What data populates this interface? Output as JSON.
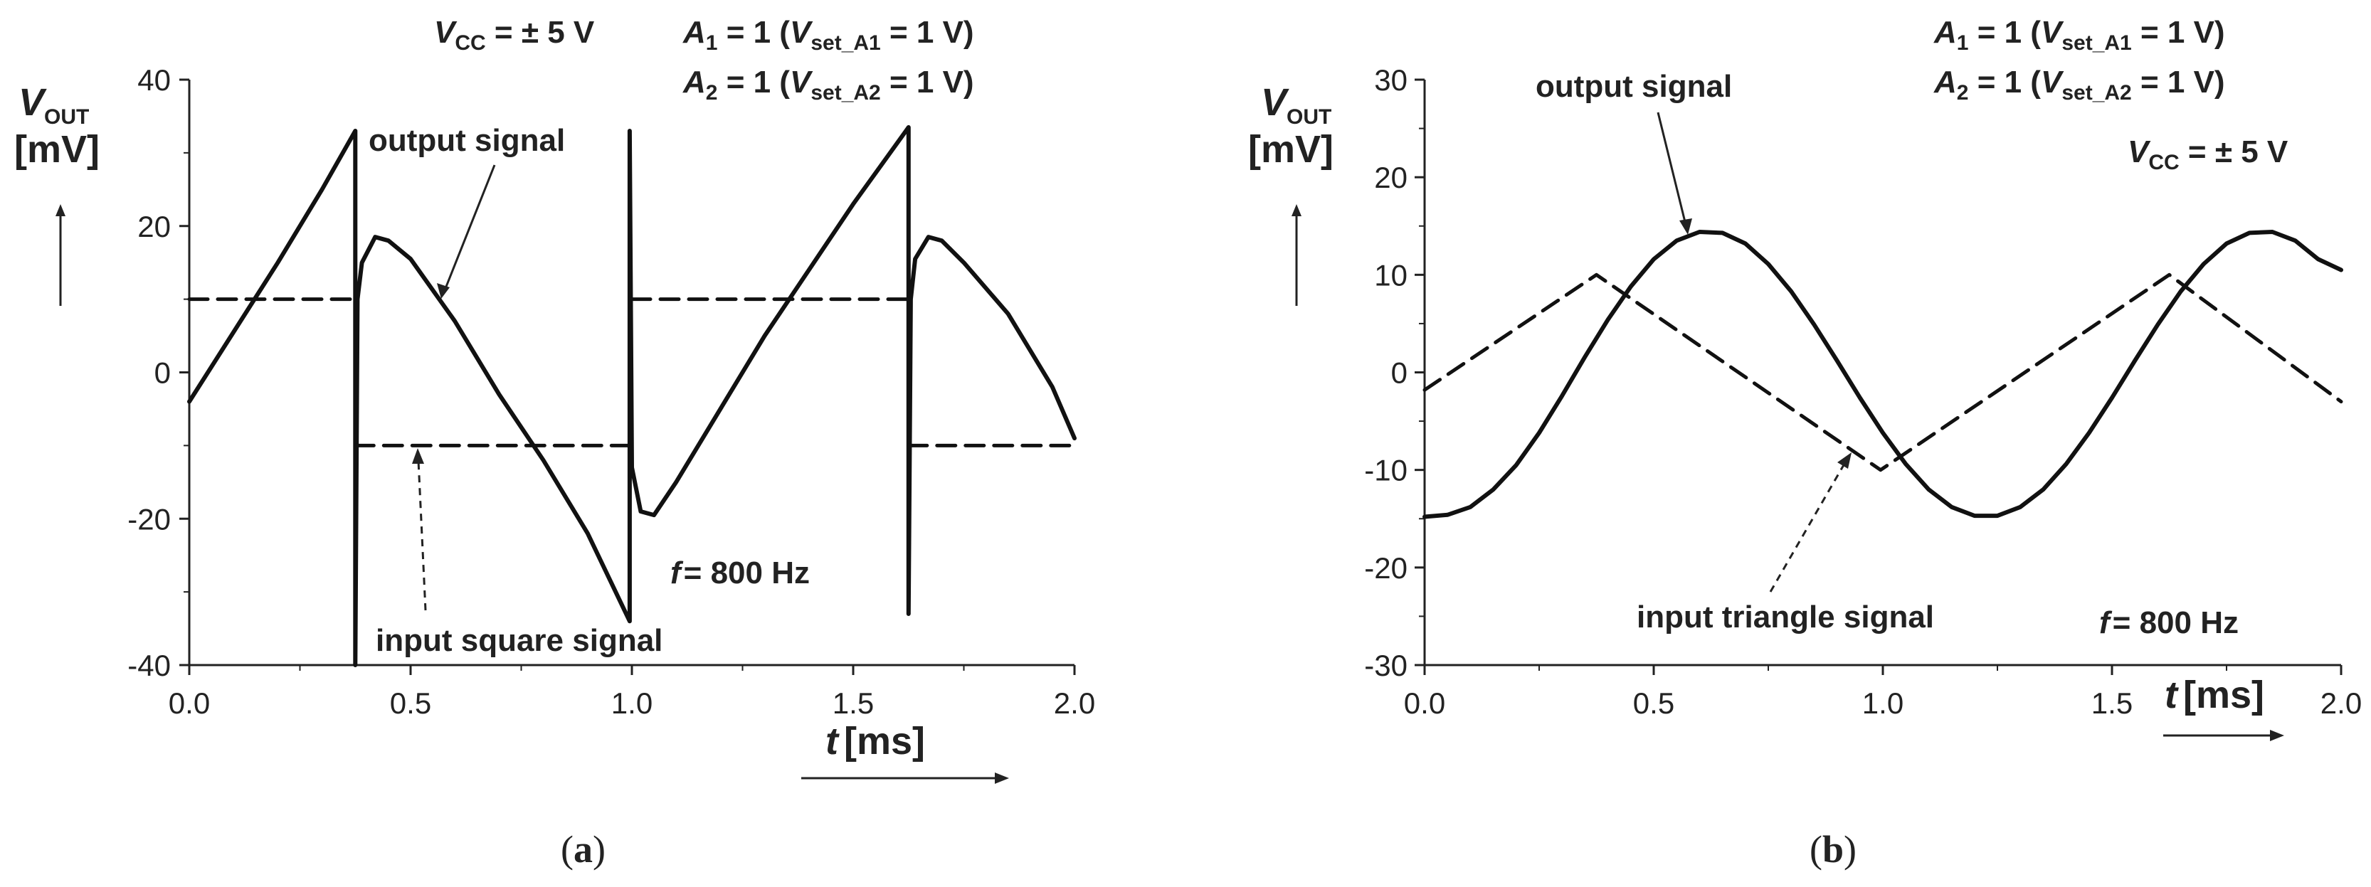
{
  "chart_data": [
    {
      "id": "a",
      "type": "line",
      "caption": "(a)",
      "caption_letter": "a",
      "xlabel": "t",
      "xunit": "[ms]",
      "ylabel_main": "V",
      "ylabel_sub": "OUT",
      "yunit": "[mV]",
      "xlim": [
        0,
        2
      ],
      "ylim": [
        -40,
        40
      ],
      "xticks": [
        "0.0",
        "0.5",
        "1.0",
        "1.5",
        "2.0"
      ],
      "yticks": [
        "40",
        "20",
        "0",
        "-20",
        "-40"
      ],
      "frequency_text": "= 800 Hz",
      "frequency_var": "f",
      "annotations": {
        "vcc": {
          "var": "V",
          "sub": "CC",
          "rest": " = ± 5 V"
        },
        "a1": {
          "var": "A",
          "sub": "1",
          "mid": " = 1 (",
          "var2": "V",
          "sub2": "set_A1",
          "rest": " = 1 V)"
        },
        "a2": {
          "var": "A",
          "sub": "2",
          "mid": " = 1 (",
          "var2": "V",
          "sub2": "set_A2",
          "rest": " = 1 V)"
        },
        "output": "output signal",
        "input": "input square signal"
      },
      "series": [
        {
          "name": "output signal",
          "style": "solid",
          "x": [
            0,
            0.1,
            0.2,
            0.3,
            0.375,
            0.375,
            0.38,
            0.39,
            0.42,
            0.45,
            0.5,
            0.6,
            0.7,
            0.8,
            0.9,
            0.995,
            0.995,
            1.0,
            1.02,
            1.05,
            1.1,
            1.2,
            1.3,
            1.4,
            1.5,
            1.625,
            1.625,
            1.63,
            1.64,
            1.67,
            1.7,
            1.75,
            1.85,
            1.95,
            2.0
          ],
          "y": [
            -4,
            5.5,
            15,
            25,
            33,
            -40,
            10,
            15,
            18.5,
            18,
            15.5,
            7,
            -3,
            -12,
            -22,
            -34,
            33,
            -13,
            -19,
            -19.5,
            -15,
            -5,
            5,
            14,
            23,
            33.5,
            -33,
            10,
            15.5,
            18.5,
            18,
            15,
            8,
            -2,
            -9
          ]
        },
        {
          "name": "input square signal",
          "style": "dashed",
          "segments": [
            {
              "x": [
                0,
                0.375
              ],
              "y": [
                10,
                10
              ]
            },
            {
              "x": [
                0.375,
                1.0
              ],
              "y": [
                -10,
                -10
              ]
            },
            {
              "x": [
                1.0,
                1.625
              ],
              "y": [
                10,
                10
              ]
            },
            {
              "x": [
                1.625,
                2.0
              ],
              "y": [
                -10,
                -10
              ]
            }
          ]
        }
      ]
    },
    {
      "id": "b",
      "type": "line",
      "caption": "(b)",
      "caption_letter": "b",
      "xlabel": "t",
      "xunit": "[ms]",
      "ylabel_main": "V",
      "ylabel_sub": "OUT",
      "yunit": "[mV]",
      "xlim": [
        0,
        2
      ],
      "ylim": [
        -30,
        30
      ],
      "xticks": [
        "0.0",
        "0.5",
        "1.0",
        "1.5",
        "2.0"
      ],
      "yticks": [
        "30",
        "20",
        "10",
        "0",
        "-10",
        "-20",
        "-30"
      ],
      "frequency_text": "= 800 Hz",
      "frequency_var": "f",
      "annotations": {
        "vcc": {
          "var": "V",
          "sub": "CC",
          "rest": " = ± 5 V"
        },
        "a1": {
          "var": "A",
          "sub": "1",
          "mid": " = 1 (",
          "var2": "V",
          "sub2": "set_A1",
          "rest": " = 1 V)"
        },
        "a2": {
          "var": "A",
          "sub": "2",
          "mid": " = 1 (",
          "var2": "V",
          "sub2": "set_A2",
          "rest": " = 1 V)"
        },
        "output": "output signal",
        "input": "input triangle signal"
      },
      "series": [
        {
          "name": "output signal",
          "style": "solid",
          "x": [
            0,
            0.05,
            0.1,
            0.15,
            0.2,
            0.25,
            0.3,
            0.35,
            0.4,
            0.45,
            0.5,
            0.55,
            0.6,
            0.65,
            0.7,
            0.75,
            0.8,
            0.85,
            0.9,
            0.95,
            1.0,
            1.05,
            1.1,
            1.15,
            1.2,
            1.25,
            1.3,
            1.35,
            1.4,
            1.45,
            1.5,
            1.55,
            1.6,
            1.65,
            1.7,
            1.75,
            1.8,
            1.85,
            1.9,
            1.95,
            2.0
          ],
          "y": [
            -14.8,
            -14.6,
            -13.8,
            -12.0,
            -9.5,
            -6.2,
            -2.4,
            1.6,
            5.4,
            8.8,
            11.6,
            13.5,
            14.4,
            14.3,
            13.2,
            11.1,
            8.3,
            4.9,
            1.2,
            -2.6,
            -6.2,
            -9.4,
            -12.0,
            -13.8,
            -14.7,
            -14.7,
            -13.8,
            -12.0,
            -9.4,
            -6.2,
            -2.6,
            1.2,
            4.9,
            8.3,
            11.1,
            13.2,
            14.3,
            14.4,
            13.5,
            11.6,
            10.5
          ]
        },
        {
          "name": "input triangle signal",
          "style": "dashed",
          "x": [
            0,
            0.375,
            0.995,
            1.625,
            2.0
          ],
          "y": [
            -1.8,
            10,
            -10,
            10,
            -3
          ]
        }
      ]
    }
  ]
}
